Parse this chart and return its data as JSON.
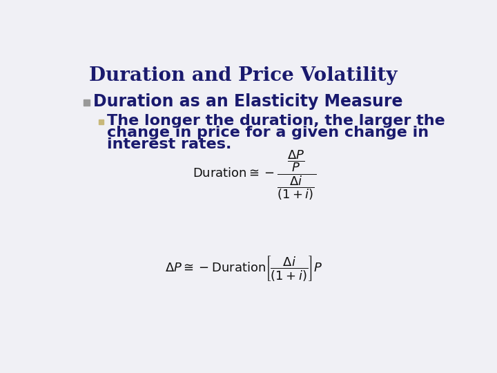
{
  "title": "Duration and Price Volatility",
  "title_color": "#1a1a6e",
  "title_fontsize": 20,
  "bullet1_text": "Duration as an Elasticity Measure",
  "bullet1_color": "#1a1a6e",
  "bullet1_fontsize": 17,
  "bullet1_marker_color": "#999999",
  "bullet2_line1": "The longer the duration, the larger the",
  "bullet2_line2": "change in price for a given change in",
  "bullet2_line3": "interest rates.",
  "bullet2_color": "#1a1a6e",
  "bullet2_fontsize": 16,
  "bullet2_marker_color": "#c8b87a",
  "formula_color": "#111111",
  "formula_fontsize": 13,
  "bg_color": "#f0f0f5"
}
